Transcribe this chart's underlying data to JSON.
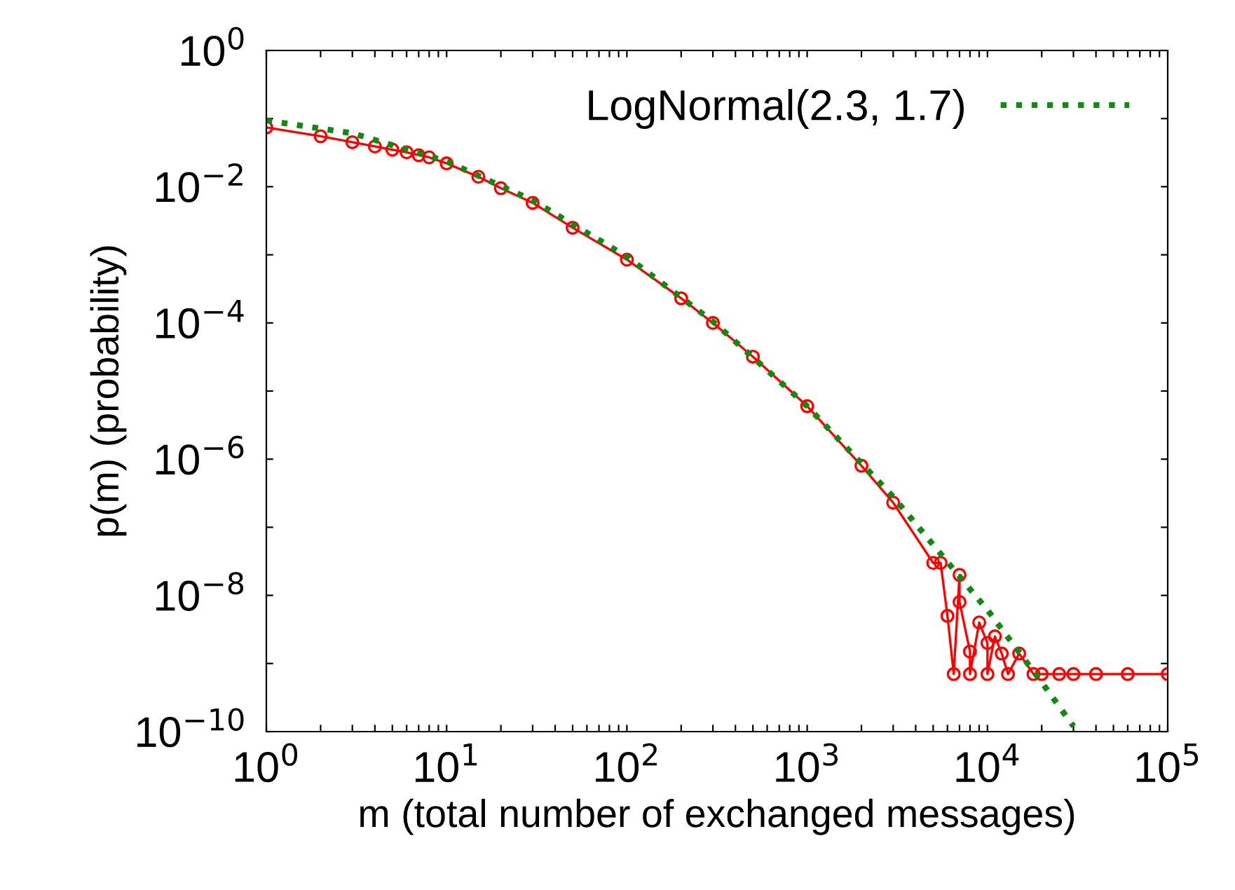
{
  "chart_data": {
    "type": "line",
    "xlabel": "m (total number of exchanged messages)",
    "ylabel": "p(m) (probability)",
    "log": "xy",
    "grid": false,
    "legend": "top right",
    "xlim": [
      1,
      100000
    ],
    "ylim": [
      1e-10,
      1
    ],
    "xticks": [
      {
        "value": 1,
        "label": "10$^{0}$"
      },
      {
        "value": 2,
        "label": null
      },
      {
        "value": 3,
        "label": null
      },
      {
        "value": 4,
        "label": null
      },
      {
        "value": 5,
        "label": null
      },
      {
        "value": 6,
        "label": null
      },
      {
        "value": 7,
        "label": null
      },
      {
        "value": 8,
        "label": null
      },
      {
        "value": 9,
        "label": null
      },
      {
        "value": 10,
        "label": "10$^{1}$"
      },
      {
        "value": 20,
        "label": null
      },
      {
        "value": 30,
        "label": null
      },
      {
        "value": 40,
        "label": null
      },
      {
        "value": 50,
        "label": null
      },
      {
        "value": 60,
        "label": null
      },
      {
        "value": 70,
        "label": null
      },
      {
        "value": 80,
        "label": null
      },
      {
        "value": 90,
        "label": null
      },
      {
        "value": 100,
        "label": "10$^{2}$"
      },
      {
        "value": 200,
        "label": null
      },
      {
        "value": 300,
        "label": null
      },
      {
        "value": 400,
        "label": null
      },
      {
        "value": 500,
        "label": null
      },
      {
        "value": 600,
        "label": null
      },
      {
        "value": 700,
        "label": null
      },
      {
        "value": 800,
        "label": null
      },
      {
        "value": 900,
        "label": null
      },
      {
        "value": 1000,
        "label": "10$^{3}$"
      },
      {
        "value": 2000,
        "label": null
      },
      {
        "value": 3000,
        "label": null
      },
      {
        "value": 4000,
        "label": null
      },
      {
        "value": 5000,
        "label": null
      },
      {
        "value": 6000,
        "label": null
      },
      {
        "value": 7000,
        "label": null
      },
      {
        "value": 8000,
        "label": null
      },
      {
        "value": 9000,
        "label": null
      },
      {
        "value": 10000,
        "label": "10$^{4}$"
      },
      {
        "value": 20000,
        "label": null
      },
      {
        "value": 30000,
        "label": null
      },
      {
        "value": 40000,
        "label": null
      },
      {
        "value": 50000,
        "label": null
      },
      {
        "value": 60000,
        "label": null
      },
      {
        "value": 70000,
        "label": null
      },
      {
        "value": 80000,
        "label": null
      },
      {
        "value": 90000,
        "label": null
      },
      {
        "value": 100000,
        "label": "10$^{5}$"
      }
    ],
    "yticks": [
      {
        "value": 1,
        "label": "10$^{0}$"
      },
      {
        "value": 0.1,
        "label": null
      },
      {
        "value": 0.01,
        "label": "10$^{−2}$"
      },
      {
        "value": 0.001,
        "label": null
      },
      {
        "value": 0.0001,
        "label": "10$^{−4}$"
      },
      {
        "value": 1e-05,
        "label": null
      },
      {
        "value": 1e-06,
        "label": "10$^{−6}$"
      },
      {
        "value": 1e-07,
        "label": null
      },
      {
        "value": 1e-08,
        "label": "10$^{−8}$"
      },
      {
        "value": 1e-09,
        "label": null
      },
      {
        "value": 1e-10,
        "label": "10$^{−10}$"
      }
    ],
    "series": [
      {
        "marker": "circle",
        "line_style": "solid",
        "color": "#ff0000",
        "x": [
          1,
          2,
          3,
          4,
          5,
          6,
          7,
          8,
          10,
          15,
          20,
          30,
          50,
          100,
          200,
          300,
          500,
          1000,
          2000,
          3000,
          5000,
          5500,
          6000,
          6500,
          7000,
          7000,
          8000,
          8000,
          9000,
          10000,
          10000,
          11000,
          12000,
          13000,
          15000,
          18000,
          20000,
          25000,
          30000,
          40000,
          60000,
          100000
        ],
        "values": [
          0.074,
          0.055,
          0.045,
          0.039,
          0.035,
          0.032,
          0.029,
          0.027,
          0.022,
          0.014,
          0.0095,
          0.0058,
          0.0025,
          0.00085,
          0.00023,
          0.0001,
          3.2e-05,
          6e-06,
          8e-07,
          2.3e-07,
          3e-08,
          3e-08,
          5e-09,
          7e-10,
          2e-08,
          8e-09,
          1.5e-09,
          7e-10,
          4e-09,
          2e-09,
          7e-10,
          2.5e-09,
          1.4e-09,
          7e-10,
          1.4e-09,
          7e-10,
          7e-10,
          7e-10,
          7e-10,
          7e-10,
          7e-10,
          7e-10
        ]
      },
      {
        "name": "LogNormal(2.3, 1.7)",
        "marker": "none",
        "line_style": "dotted",
        "color": "#108a10",
        "x": [
          1,
          3,
          10,
          30,
          100,
          300,
          1000,
          3000,
          10000,
          20000,
          30000
        ],
        "values": [
          0.094,
          0.061,
          0.0235,
          0.0063,
          0.00094,
          0.000105,
          6e-06,
          2.8e-07,
          6.1e-09,
          5.3e-10,
          1.2e-10
        ]
      }
    ]
  }
}
